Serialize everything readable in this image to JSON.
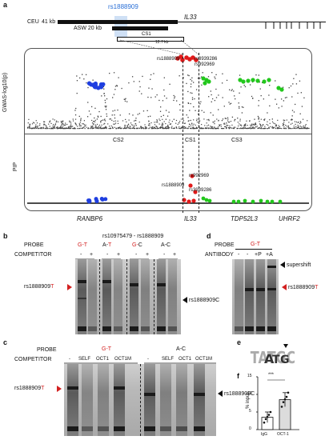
{
  "panel_a": {
    "letter": "a",
    "rsid": "rs1888909",
    "ceu_label": "CEU",
    "ceu_kb": "41 kb",
    "il33_label": "IL33",
    "asw_label": "ASW 20 kb",
    "cs1_label": "CS1",
    "dist_label": "12.7 kb",
    "ylabel_top": "GWAS-log10(p)",
    "ylabel_bottom": "PIP",
    "cs2": "CS2",
    "cs1": "CS1",
    "cs3": "CS3",
    "top_labels": [
      "rs1888909",
      "rs3939286",
      "rs992969"
    ],
    "bottom_labels": [
      "rs992969",
      "rs1888909",
      "rs3939286"
    ],
    "genes": [
      "RANBP6",
      "IL33",
      "TDP52L3",
      "UHRF2"
    ],
    "colors": {
      "cs2": "#1f3fe0",
      "cs1": "#e01a1a",
      "cs3": "#22c71c",
      "other": "#444444"
    }
  },
  "panel_b": {
    "letter": "b",
    "title": "rs10975479 - rs1888909",
    "probe_label": "PROBE",
    "competitor_label": "COMPETITOR",
    "probes": [
      {
        "a": "G",
        "b": "T",
        "a_red": true,
        "b_red": true
      },
      {
        "a": "A",
        "b": "T",
        "a_red": false,
        "b_red": true
      },
      {
        "a": "G",
        "b": "C",
        "a_red": true,
        "b_red": false
      },
      {
        "a": "A",
        "b": "C",
        "a_red": false,
        "b_red": false
      }
    ],
    "signs": [
      "-",
      "+",
      "-",
      "+",
      "-",
      "+",
      "-",
      "+"
    ],
    "left_marker": "rs1888909",
    "left_marker_allele": "T",
    "right_marker": "rs1888909C"
  },
  "panel_c": {
    "letter": "c",
    "probe_label": "PROBE",
    "competitor_label": "COMPETITOR",
    "probe_gt": "G-T",
    "probe_ac": "A-C",
    "lanes": [
      "-",
      "SELF",
      "OCT1",
      "OCT1M",
      "-",
      "SELF",
      "OCT1",
      "OCT1M"
    ],
    "left_marker": "rs1888909",
    "left_marker_allele": "T",
    "right_marker": "rs1888909C"
  },
  "panel_d": {
    "letter": "d",
    "probe_label": "PROBE",
    "probe": "G-T",
    "antibody_label": "ANTIBODY",
    "signs": [
      "-",
      "-",
      "+P",
      "+A"
    ],
    "supershift": "supershift",
    "marker": "rs1888909",
    "marker_allele": "T"
  },
  "panel_e": {
    "letter": "e"
  },
  "panel_f": {
    "letter": "f",
    "ylabel": "% input",
    "yticks": [
      "15",
      "10",
      "5",
      "0"
    ],
    "significance": "***",
    "categories": [
      "IgG",
      "OCT-1"
    ],
    "chart_data": {
      "type": "bar",
      "categories": [
        "IgG",
        "OCT-1"
      ],
      "values": [
        3.5,
        8.5
      ],
      "errors": [
        1.5,
        2.0
      ],
      "points": [
        [
          2.0,
          3.0,
          3.6,
          4.2,
          5.0
        ],
        [
          6.5,
          7.8,
          8.6,
          9.3,
          10.5
        ]
      ],
      "ylim": [
        0,
        15
      ],
      "ylabel": "% input"
    }
  }
}
